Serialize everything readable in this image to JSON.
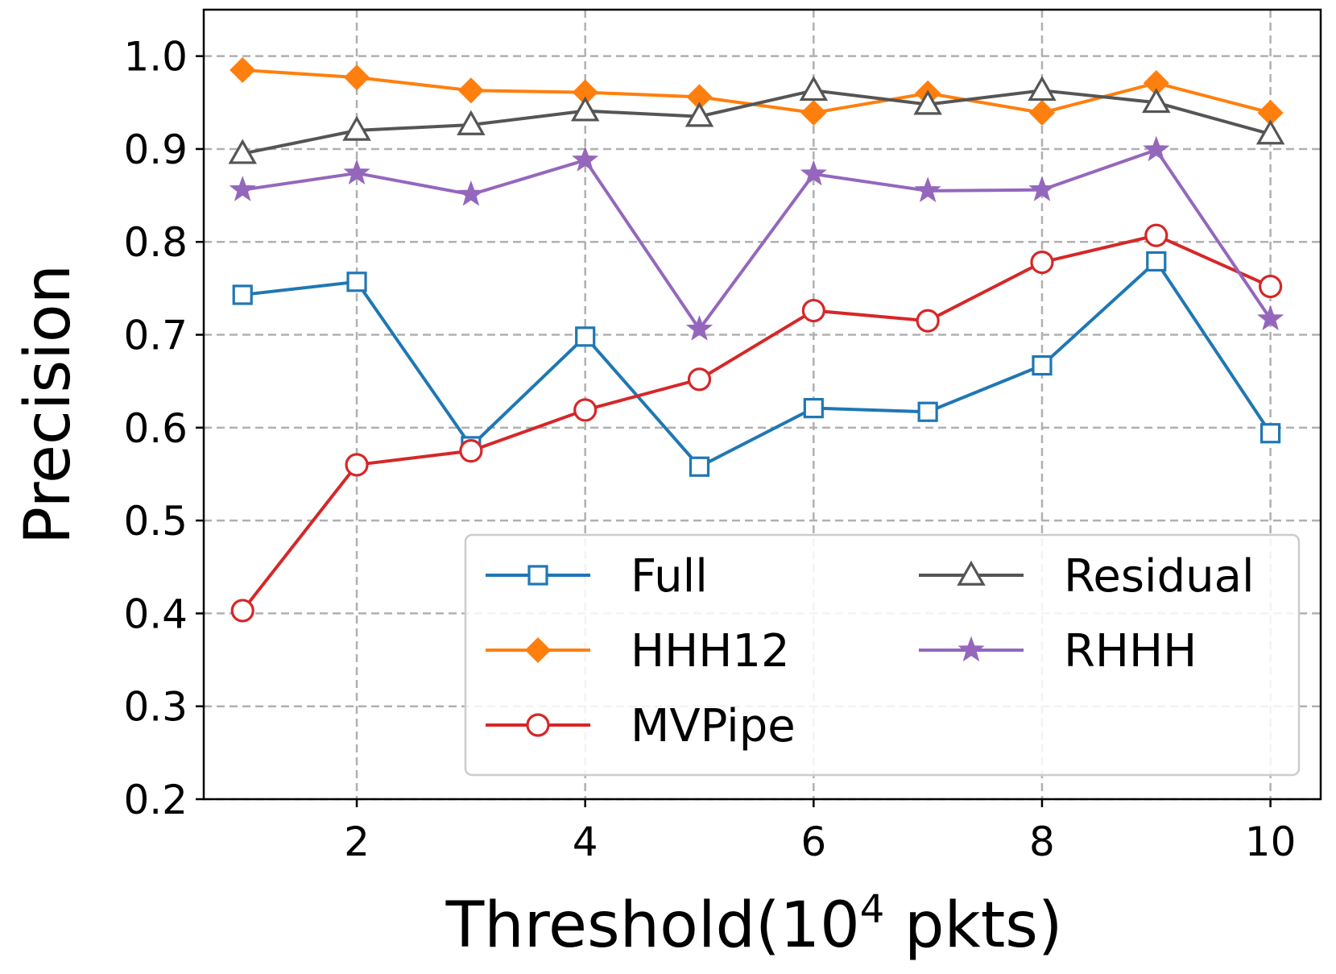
{
  "chart_data": {
    "type": "line",
    "title": "",
    "xlabel": "Threshold(10",
    "xlabel_superscript": "4",
    "xlabel_suffix": " pkts)",
    "ylabel": "Precision",
    "x": [
      1,
      2,
      3,
      4,
      5,
      6,
      7,
      8,
      9,
      10
    ],
    "xlim": [
      0.66,
      10.44
    ],
    "ylim": [
      0.2,
      1.05
    ],
    "xticks": [
      2,
      4,
      6,
      8,
      10
    ],
    "xtick_labels": [
      "2",
      "4",
      "6",
      "8",
      "10"
    ],
    "yticks": [
      0.2,
      0.3,
      0.4,
      0.5,
      0.6,
      0.7,
      0.8,
      0.9,
      1.0
    ],
    "ytick_labels": [
      "0.2",
      "0.3",
      "0.4",
      "0.5",
      "0.6",
      "0.7",
      "0.8",
      "0.9",
      "1.0"
    ],
    "grid": true,
    "legend_position": "lower-right",
    "legend_columns": 2,
    "series": [
      {
        "name": "Full",
        "color": "#1f77b4",
        "marker": "square-open",
        "values": [
          0.743,
          0.757,
          0.58,
          0.698,
          0.558,
          0.621,
          0.617,
          0.667,
          0.779,
          0.594
        ]
      },
      {
        "name": "HHH12",
        "color": "#ff7f0e",
        "marker": "diamond-filled",
        "values": [
          0.985,
          0.977,
          0.963,
          0.961,
          0.956,
          0.939,
          0.96,
          0.939,
          0.971,
          0.939
        ]
      },
      {
        "name": "MVPipe",
        "color": "#d62728",
        "marker": "circle-open",
        "values": [
          0.403,
          0.56,
          0.575,
          0.619,
          0.652,
          0.726,
          0.715,
          0.778,
          0.807,
          0.752
        ]
      },
      {
        "name": "Residual",
        "color": "#555555",
        "marker": "triangle-open",
        "values": [
          0.895,
          0.92,
          0.926,
          0.941,
          0.935,
          0.963,
          0.948,
          0.963,
          0.95,
          0.916
        ]
      },
      {
        "name": "RHHH",
        "color": "#9467bd",
        "marker": "star-filled",
        "values": [
          0.856,
          0.874,
          0.851,
          0.888,
          0.706,
          0.873,
          0.855,
          0.856,
          0.899,
          0.717
        ]
      }
    ]
  }
}
